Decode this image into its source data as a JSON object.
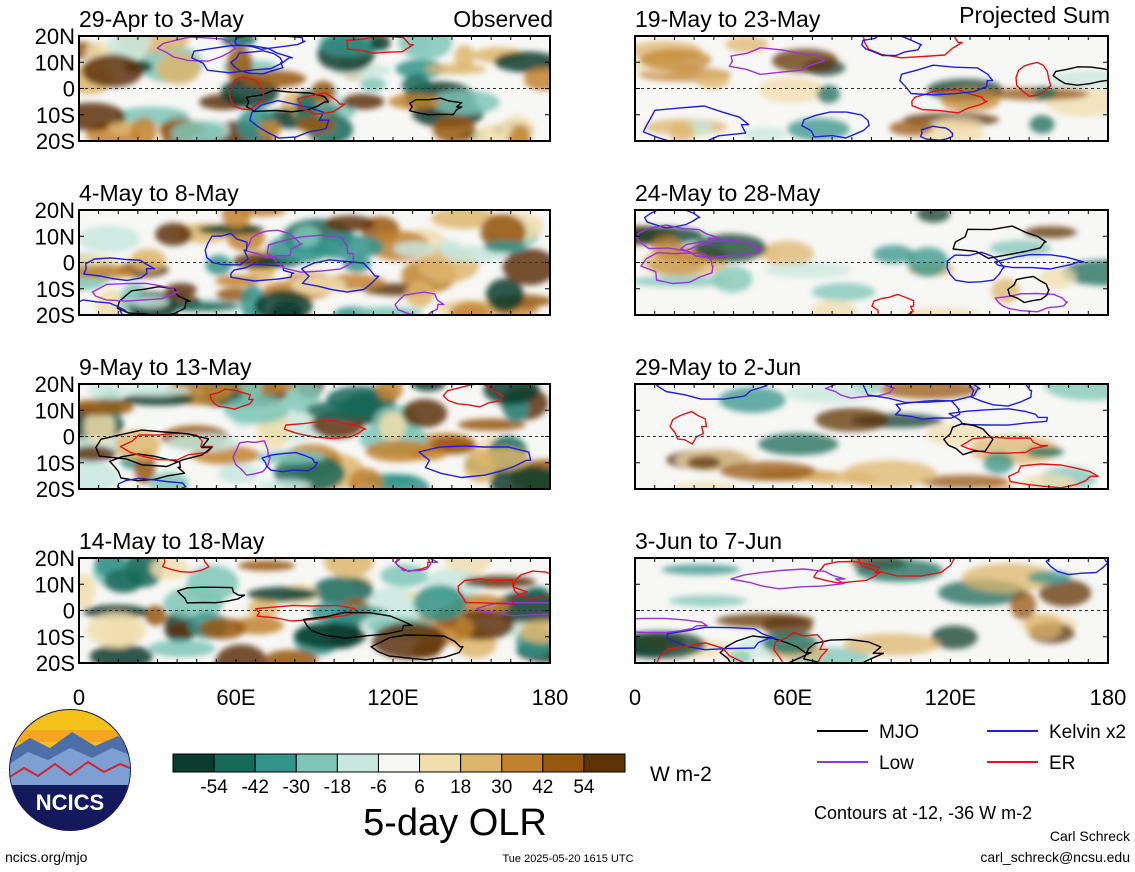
{
  "chart_data": {
    "type": "heatmap",
    "title": "5-day OLR",
    "units": "W m-2",
    "colorbar": {
      "ticks": [
        "-54",
        "-42",
        "-30",
        "-18",
        "-6",
        "6",
        "18",
        "30",
        "42",
        "54"
      ],
      "colors": [
        "#0b3d2e",
        "#17695a",
        "#34938a",
        "#7fc6b7",
        "#c8e7de",
        "#f6f6f2",
        "#f1deae",
        "#ddb66d",
        "#c2832f",
        "#97570f",
        "#5e3308"
      ]
    },
    "x_ticks": [
      "0",
      "60E",
      "120E",
      "180"
    ],
    "y_ticks": [
      "20N",
      "10N",
      "0",
      "10S",
      "20S"
    ],
    "left_label": "Observed",
    "right_label": "Projected Sum",
    "panels": [
      {
        "title": "29-Apr to 3-May",
        "column": "left"
      },
      {
        "title": "4-May to 8-May",
        "column": "left"
      },
      {
        "title": "9-May to 13-May",
        "column": "left"
      },
      {
        "title": "14-May to 18-May",
        "column": "left"
      },
      {
        "title": "19-May to 23-May",
        "column": "right"
      },
      {
        "title": "24-May to 28-May",
        "column": "right"
      },
      {
        "title": "29-May to 2-Jun",
        "column": "right"
      },
      {
        "title": "3-Jun to 7-Jun",
        "column": "right"
      }
    ],
    "legend": [
      {
        "label": "MJO",
        "color": "#000000"
      },
      {
        "label": "Kelvin x2",
        "color": "#1f1fd6"
      },
      {
        "label": "Low",
        "color": "#9a33d6"
      },
      {
        "label": "ER",
        "color": "#e01515"
      }
    ],
    "contour_note": "Contours at -12, -36 W m-2"
  },
  "footer": {
    "logo_text": "NCICS",
    "url": "ncics.org/mjo",
    "timestamp": "Tue 2025-05-20 1615 UTC",
    "author": "Carl Schreck",
    "email": "carl_schreck@ncsu.edu"
  }
}
